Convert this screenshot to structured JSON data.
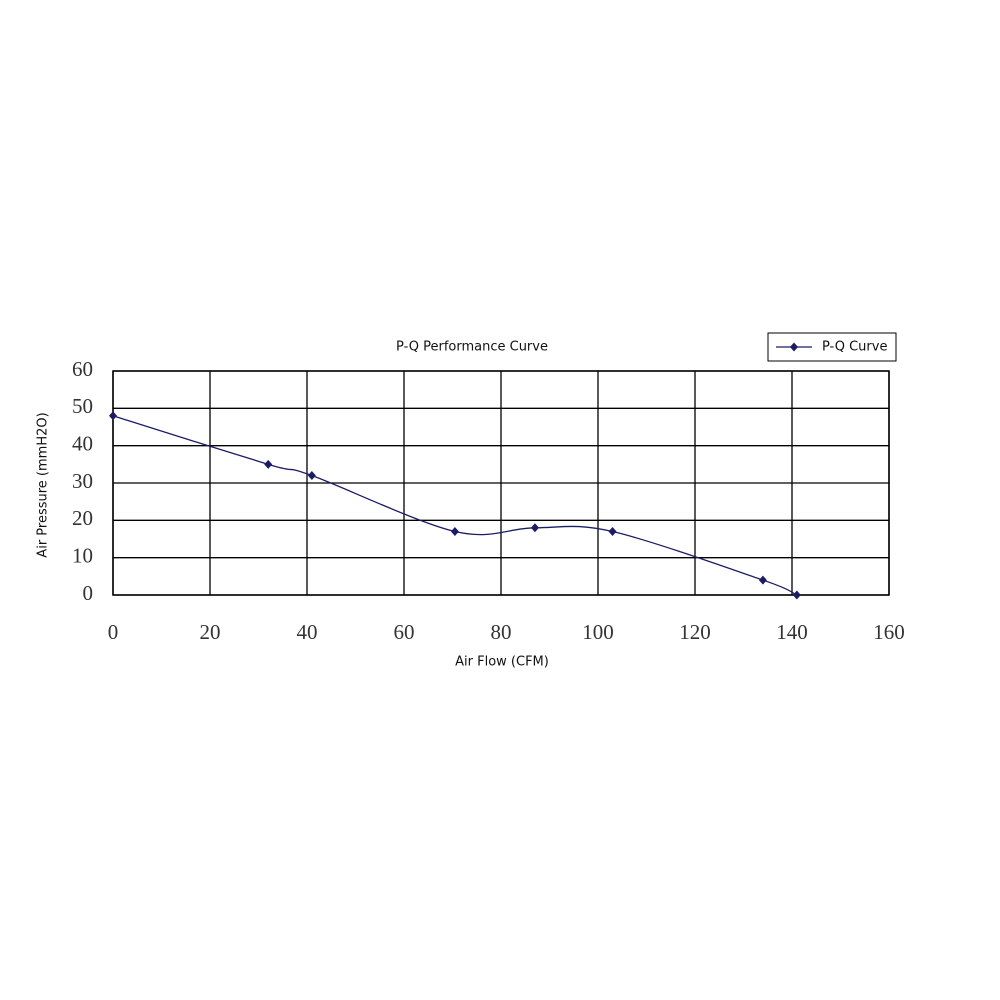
{
  "chart_data": {
    "type": "line",
    "title": "P-Q Performance Curve",
    "x_label": "Air Flow (CFM)",
    "y_label": "Air Pressure (mmH2O)",
    "x": [
      0,
      32,
      41,
      70.5,
      87,
      103,
      134,
      141
    ],
    "series": [
      {
        "name": "P-Q Curve",
        "color": "#1c1c66",
        "values": [
          48,
          35,
          32,
          17,
          18,
          17,
          4,
          0
        ]
      }
    ],
    "xlim": [
      0,
      160
    ],
    "ylim": [
      0,
      60
    ],
    "xticks": [
      0,
      20,
      40,
      60,
      80,
      100,
      120,
      140,
      160
    ],
    "yticks": [
      0,
      10,
      20,
      30,
      40,
      50,
      60
    ],
    "grid": true,
    "legend": "top-right",
    "smooth": true
  }
}
